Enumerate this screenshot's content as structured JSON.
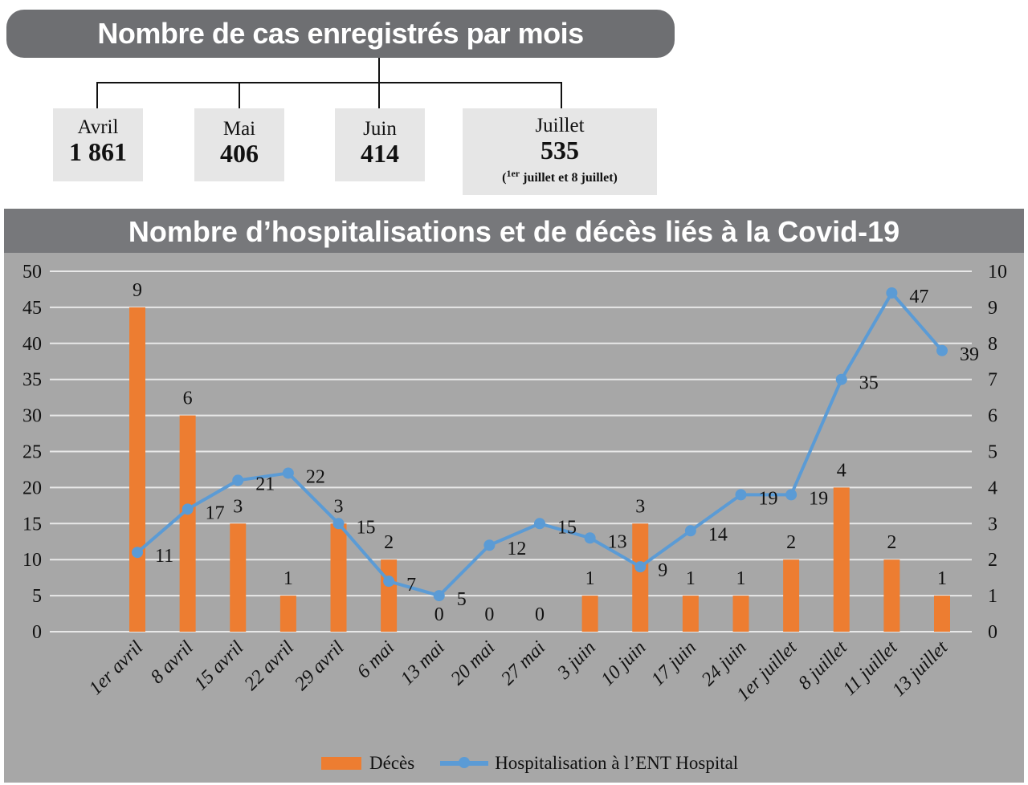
{
  "cases": {
    "title": "Nombre de cas enregistrés par mois",
    "months": [
      {
        "month": "Avril",
        "value": "1 861"
      },
      {
        "month": "Mai",
        "value": "406"
      },
      {
        "month": "Juin",
        "value": "414"
      },
      {
        "month": "Juillet",
        "value": "535",
        "note_sup": "1er",
        "note": "juillet et 8 juillet"
      }
    ]
  },
  "chart_data": {
    "type": "bar+line",
    "title": "Nombre d’hospitalisations et de décès liés à la Covid-19",
    "categories": [
      "1er avril",
      "8 avril",
      "15 avril",
      "22 avril",
      "29 avril",
      "6 mai",
      "13 mai",
      "20 mai",
      "27 mai",
      "3 juin",
      "10 juin",
      "17 juin",
      "24 juin",
      "1er juillet",
      "8 juillet",
      "11 juillet",
      "13 juillet"
    ],
    "series": [
      {
        "name": "Décès",
        "type": "bar",
        "axis": "right",
        "color": "#ed7d31",
        "values": [
          9,
          6,
          3,
          1,
          3,
          2,
          0,
          0,
          0,
          1,
          3,
          1,
          1,
          2,
          4,
          2,
          1
        ]
      },
      {
        "name": "Hospitalisation à l’ENT Hospital",
        "type": "line",
        "axis": "left",
        "color": "#5b9bd5",
        "values": [
          11,
          17,
          21,
          22,
          15,
          7,
          5,
          12,
          15,
          13,
          9,
          14,
          19,
          19,
          35,
          47,
          39
        ]
      }
    ],
    "y_left": {
      "min": 0,
      "max": 50,
      "ticks": [
        0,
        5,
        10,
        15,
        20,
        25,
        30,
        35,
        40,
        45,
        50
      ]
    },
    "y_right": {
      "min": 0,
      "max": 10,
      "ticks": [
        0,
        1,
        2,
        3,
        4,
        5,
        6,
        7,
        8,
        9,
        10
      ]
    },
    "grid": true,
    "legend": "bottom",
    "background": "#a7a7a7"
  }
}
